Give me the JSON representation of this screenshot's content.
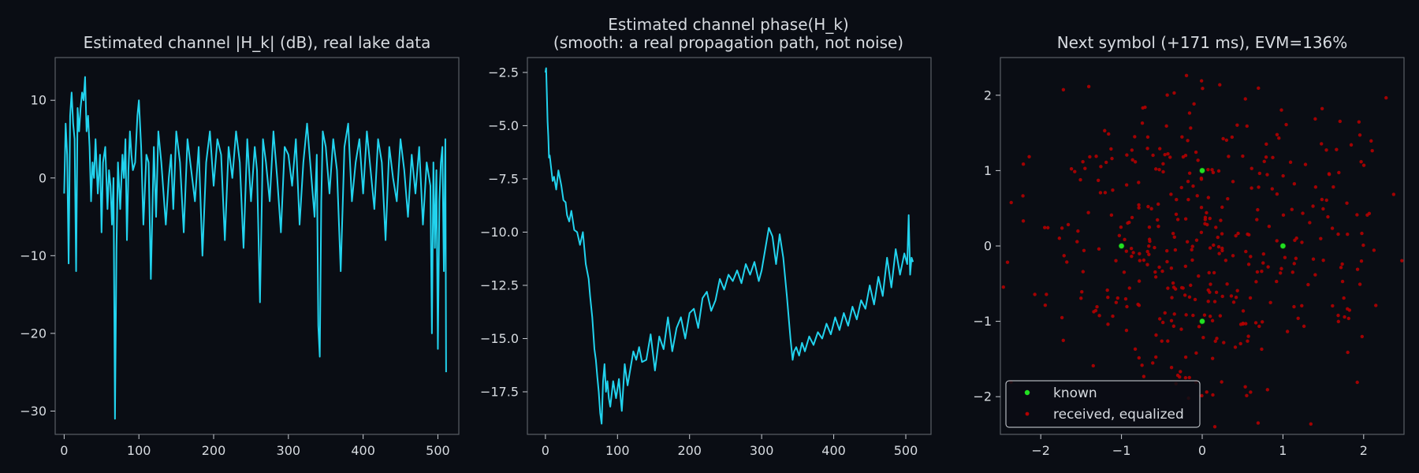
{
  "colors": {
    "background": "#0a0d14",
    "text": "#d7dbe0",
    "line": "#22d3ee",
    "known": "#22e022",
    "received": "#b30000",
    "frame": "#5a5f66"
  },
  "chart_data": [
    {
      "type": "line",
      "title": "Estimated channel |H_k| (dB), real lake data",
      "xlim": [
        -12,
        528
      ],
      "ylim": [
        -33,
        15.5
      ],
      "xticks": [
        0,
        100,
        200,
        300,
        400,
        500
      ],
      "xtick_labels": [
        "0",
        "100",
        "200",
        "300",
        "400",
        "500"
      ],
      "yticks": [
        10,
        0,
        -10,
        -20,
        -30
      ],
      "ytick_labels": [
        "10",
        "0",
        "−10",
        "−20",
        "−30"
      ],
      "grid": false,
      "series": [
        {
          "color": "#22d3ee",
          "x": [
            0,
            2,
            4,
            6,
            8,
            10,
            12,
            14,
            16,
            18,
            20,
            22,
            24,
            26,
            28,
            30,
            32,
            34,
            36,
            38,
            40,
            42,
            45,
            48,
            50,
            52,
            55,
            58,
            60,
            62,
            64,
            66,
            68,
            70,
            72,
            75,
            78,
            80,
            82,
            84,
            86,
            88,
            90,
            92,
            95,
            98,
            100,
            103,
            106,
            110,
            113,
            116,
            120,
            123,
            126,
            130,
            133,
            136,
            140,
            143,
            146,
            150,
            155,
            160,
            165,
            170,
            175,
            180,
            185,
            190,
            195,
            200,
            205,
            210,
            215,
            220,
            225,
            230,
            235,
            240,
            245,
            250,
            255,
            258,
            262,
            266,
            270,
            275,
            280,
            285,
            290,
            295,
            300,
            305,
            310,
            315,
            320,
            325,
            330,
            335,
            338,
            340,
            342,
            344,
            346,
            350,
            355,
            360,
            365,
            370,
            375,
            380,
            385,
            390,
            395,
            400,
            405,
            410,
            415,
            420,
            425,
            430,
            435,
            440,
            445,
            450,
            455,
            460,
            465,
            470,
            475,
            480,
            485,
            490,
            492,
            494,
            496,
            498,
            500,
            502,
            504,
            506,
            508,
            510,
            511
          ],
          "y": [
            -2,
            7,
            3,
            -11,
            8,
            11,
            7,
            5,
            -12,
            9,
            6,
            9,
            11,
            10,
            13,
            6,
            8,
            4,
            -3,
            2,
            0,
            5,
            -2,
            3,
            -7,
            2,
            4,
            -4,
            1,
            -1,
            -6,
            0,
            -31,
            -9,
            2,
            -4,
            3,
            0,
            5,
            -8,
            1,
            6,
            3,
            1,
            2,
            8,
            10,
            4,
            -6,
            3,
            2,
            -13,
            4,
            -5,
            6,
            2,
            -2,
            -6,
            0,
            3,
            -4,
            6,
            2,
            -7,
            5,
            1,
            -3,
            4,
            -10,
            2,
            6,
            -1,
            5,
            3,
            -8,
            4,
            0,
            6,
            2,
            -9,
            5,
            -3,
            4,
            1,
            -16,
            5,
            2,
            -3,
            6,
            0,
            -7,
            4,
            3,
            -1,
            5,
            -6,
            2,
            7,
            1,
            -5,
            3,
            -19,
            -23,
            -3,
            6,
            4,
            -2,
            5,
            1,
            -12,
            4,
            7,
            -3,
            2,
            5,
            -2,
            6,
            1,
            -4,
            5,
            2,
            -8,
            4,
            0,
            -3,
            5,
            1,
            -5,
            3,
            -2,
            4,
            -6,
            2,
            -1,
            -20,
            2,
            -9,
            1,
            -22,
            -3,
            2,
            4,
            -12,
            5,
            -25
          ]
        }
      ]
    },
    {
      "type": "line",
      "title": "Estimated channel phase(H_k)",
      "subtitle": "(smooth: a real propagation path, not noise)",
      "xlim": [
        -25,
        535
      ],
      "ylim": [
        -19.5,
        -1.8
      ],
      "xticks": [
        0,
        100,
        200,
        300,
        400,
        500
      ],
      "xtick_labels": [
        "0",
        "100",
        "200",
        "300",
        "400",
        "500"
      ],
      "yticks": [
        -2.5,
        -5.0,
        -7.5,
        -10.0,
        -12.5,
        -15.0,
        -17.5
      ],
      "ytick_labels": [
        "−2.5",
        "−5.0",
        "−7.5",
        "−10.0",
        "−12.5",
        "−15.0",
        "−17.5"
      ],
      "grid": false,
      "series": [
        {
          "color": "#22d3ee",
          "x": [
            0,
            1,
            2,
            3,
            4,
            5,
            6,
            8,
            10,
            12,
            15,
            18,
            22,
            25,
            28,
            30,
            33,
            36,
            40,
            44,
            48,
            52,
            56,
            60,
            62,
            65,
            68,
            70,
            72,
            74,
            76,
            78,
            80,
            82,
            84,
            86,
            88,
            90,
            94,
            98,
            102,
            106,
            110,
            114,
            118,
            122,
            126,
            130,
            134,
            140,
            146,
            152,
            158,
            164,
            170,
            176,
            182,
            188,
            194,
            200,
            206,
            212,
            218,
            224,
            230,
            236,
            242,
            248,
            254,
            260,
            266,
            272,
            278,
            284,
            290,
            296,
            300,
            306,
            310,
            315,
            320,
            325,
            330,
            335,
            340,
            343,
            345,
            348,
            352,
            356,
            360,
            366,
            372,
            378,
            384,
            390,
            396,
            402,
            408,
            414,
            420,
            426,
            432,
            438,
            444,
            450,
            456,
            462,
            468,
            474,
            480,
            486,
            492,
            498,
            502,
            504,
            506,
            508,
            510
          ],
          "y": [
            -2.5,
            -2.3,
            -3.5,
            -4.8,
            -5.5,
            -6.5,
            -6.4,
            -7.0,
            -7.6,
            -7.4,
            -8.0,
            -7.1,
            -7.8,
            -8.5,
            -8.6,
            -9.2,
            -9.5,
            -9.0,
            -9.9,
            -10.0,
            -10.6,
            -10.0,
            -11.5,
            -12.2,
            -13.0,
            -14.0,
            -15.5,
            -16.0,
            -16.8,
            -17.5,
            -18.5,
            -19.0,
            -17.0,
            -16.2,
            -17.5,
            -17.0,
            -17.8,
            -18.2,
            -17.0,
            -17.8,
            -16.9,
            -18.4,
            -16.2,
            -17.2,
            -16.4,
            -15.6,
            -16.0,
            -15.4,
            -16.1,
            -16.0,
            -14.8,
            -16.5,
            -14.9,
            -15.5,
            -14.0,
            -15.6,
            -14.5,
            -14.0,
            -15.0,
            -13.8,
            -13.6,
            -14.5,
            -13.1,
            -12.8,
            -13.7,
            -13.2,
            -12.2,
            -12.7,
            -12.0,
            -12.3,
            -11.8,
            -12.4,
            -11.5,
            -12.0,
            -11.4,
            -12.3,
            -11.8,
            -10.6,
            -9.8,
            -10.2,
            -11.5,
            -10.1,
            -11.2,
            -13.0,
            -15.0,
            -16.0,
            -15.6,
            -15.4,
            -15.8,
            -15.2,
            -15.6,
            -14.9,
            -15.3,
            -14.7,
            -15.0,
            -14.3,
            -14.8,
            -14.0,
            -14.6,
            -13.8,
            -14.4,
            -13.5,
            -14.1,
            -13.2,
            -13.6,
            -12.5,
            -13.4,
            -12.1,
            -13.0,
            -11.2,
            -12.6,
            -10.8,
            -12.0,
            -11.0,
            -11.5,
            -9.2,
            -12.0,
            -11.2,
            -11.4
          ]
        }
      ]
    },
    {
      "type": "scatter",
      "title": "Next symbol (+171 ms), EVM=136%",
      "xlim": [
        -2.5,
        2.5
      ],
      "ylim": [
        -2.5,
        2.5
      ],
      "xticks": [
        -2,
        -1,
        0,
        1,
        2
      ],
      "xtick_labels": [
        "−2",
        "−1",
        "0",
        "1",
        "2"
      ],
      "yticks": [
        2,
        1,
        0,
        -1,
        -2
      ],
      "ytick_labels": [
        "2",
        "1",
        "0",
        "−1",
        "−2"
      ],
      "grid": false,
      "legend": {
        "position": "lower-left",
        "entries": [
          "known",
          "received, equalized"
        ]
      },
      "received_count": 420,
      "received_sigma": 0.78,
      "received_seed": 1713,
      "series": [
        {
          "name": "known",
          "color": "#22e022",
          "x": [
            -1,
            0,
            1,
            0
          ],
          "y": [
            0,
            1,
            0,
            -1
          ]
        },
        {
          "name": "received, equalized",
          "color": "#b30000"
        }
      ]
    }
  ]
}
